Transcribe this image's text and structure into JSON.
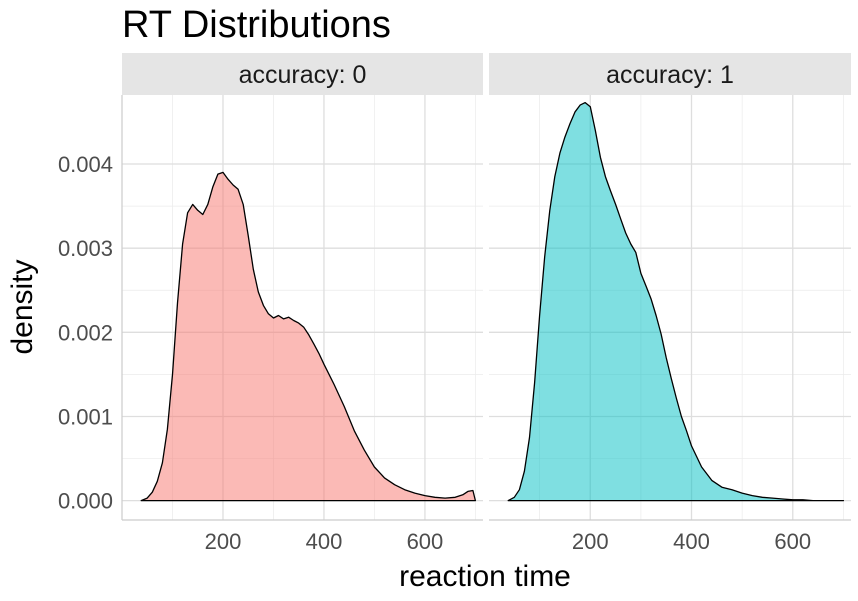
{
  "chart_data": {
    "type": "area",
    "title": "RT Distributions",
    "xlabel": "reaction time",
    "ylabel": "density",
    "xlim": [
      0,
      715
    ],
    "ylim": [
      -0.00023,
      0.00482
    ],
    "x_ticks": [
      200,
      400,
      600
    ],
    "y_ticks": [
      0.0,
      0.001,
      0.002,
      0.003,
      0.004
    ],
    "y_tick_labels": [
      "0.000",
      "0.001",
      "0.002",
      "0.003",
      "0.004"
    ],
    "grid": true,
    "legend": "none",
    "panels": [
      {
        "strip": "accuracy: 0",
        "fill": "#F8766D",
        "x": [
          38,
          50,
          60,
          70,
          80,
          90,
          100,
          110,
          120,
          130,
          140,
          150,
          160,
          170,
          180,
          190,
          200,
          210,
          220,
          230,
          240,
          250,
          260,
          270,
          280,
          290,
          300,
          310,
          320,
          330,
          340,
          350,
          360,
          370,
          380,
          390,
          400,
          420,
          440,
          460,
          480,
          500,
          520,
          540,
          560,
          580,
          600,
          620,
          640,
          660,
          675,
          685,
          695,
          700
        ],
        "y": [
          0.0,
          3e-05,
          0.0001,
          0.00023,
          0.00045,
          0.00085,
          0.0015,
          0.00235,
          0.00305,
          0.00342,
          0.00352,
          0.00345,
          0.0034,
          0.00352,
          0.00373,
          0.00388,
          0.0039,
          0.00382,
          0.00375,
          0.0037,
          0.00352,
          0.00315,
          0.00275,
          0.00248,
          0.00232,
          0.00222,
          0.00217,
          0.0022,
          0.00216,
          0.00218,
          0.00214,
          0.00211,
          0.00206,
          0.00197,
          0.00186,
          0.00175,
          0.00162,
          0.00138,
          0.00112,
          0.00083,
          0.0006,
          0.0004,
          0.00027,
          0.00019,
          0.00013,
          9e-05,
          6e-05,
          4e-05,
          3e-05,
          4e-05,
          7e-05,
          0.00011,
          0.00012,
          0.0
        ]
      },
      {
        "strip": "accuracy: 1",
        "fill": "#00BFC4",
        "x": [
          38,
          50,
          60,
          70,
          80,
          90,
          100,
          110,
          120,
          130,
          140,
          150,
          160,
          170,
          180,
          190,
          200,
          210,
          220,
          230,
          240,
          250,
          260,
          270,
          280,
          290,
          300,
          310,
          320,
          330,
          340,
          350,
          360,
          370,
          380,
          390,
          400,
          420,
          440,
          460,
          480,
          500,
          520,
          540,
          560,
          580,
          600,
          620,
          640,
          660,
          680,
          700
        ],
        "y": [
          0.0,
          4e-05,
          0.00013,
          0.00035,
          0.00075,
          0.0014,
          0.0022,
          0.0029,
          0.00345,
          0.00385,
          0.00413,
          0.00432,
          0.00448,
          0.00462,
          0.0047,
          0.00473,
          0.00468,
          0.0044,
          0.00408,
          0.00385,
          0.00368,
          0.00352,
          0.00335,
          0.00318,
          0.00305,
          0.00295,
          0.0027,
          0.00255,
          0.0024,
          0.0022,
          0.00198,
          0.0017,
          0.00145,
          0.00122,
          0.001,
          0.00083,
          0.00065,
          0.0004,
          0.00024,
          0.00016,
          0.00013,
          9e-05,
          6e-05,
          4e-05,
          3e-05,
          2e-05,
          1e-05,
          1e-05,
          0.0,
          0.0,
          0.0,
          0.0
        ]
      }
    ]
  }
}
